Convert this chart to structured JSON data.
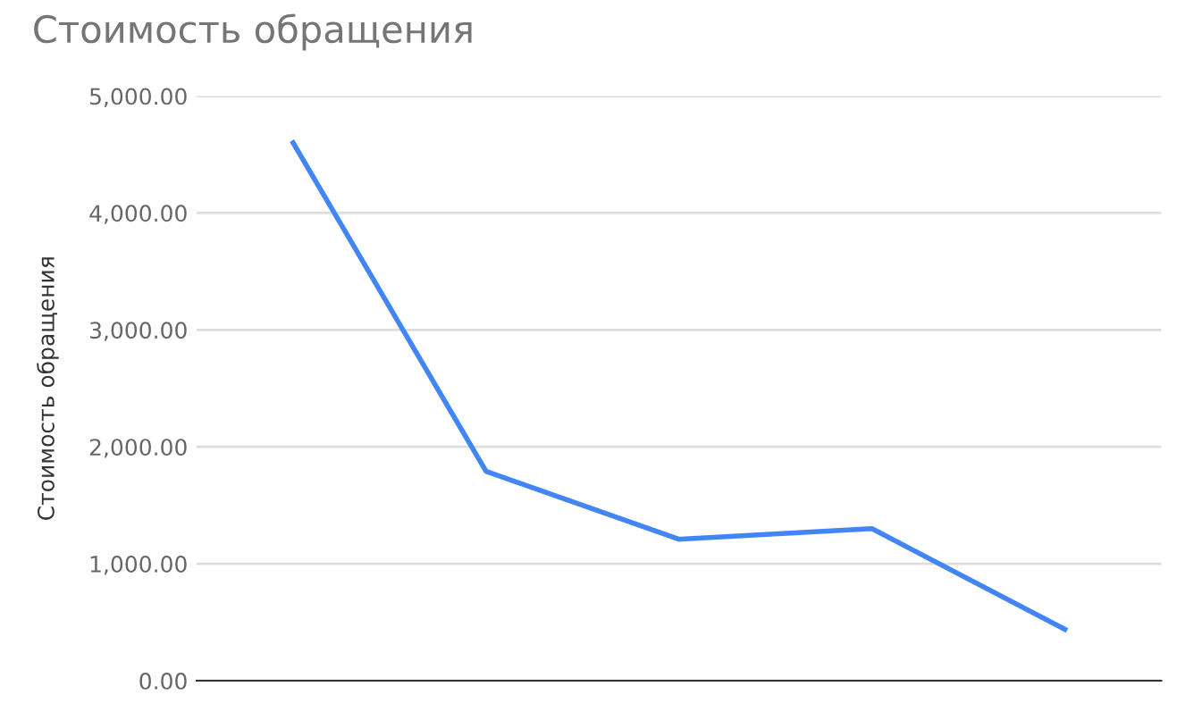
{
  "chart_data": {
    "type": "line",
    "title": "Стоимость обращения",
    "ylabel": "Стоимость обращения",
    "categories": [
      null,
      null,
      null,
      null,
      null
    ],
    "series": [
      {
        "color": "#4285f4",
        "values": [
          4600,
          1790,
          1210,
          1300,
          440
        ]
      }
    ],
    "ylim": [
      0,
      5000
    ],
    "yticks": [
      {
        "value": 0,
        "label": "0.00"
      },
      {
        "value": 1000,
        "label": "1,000.00"
      },
      {
        "value": 2000,
        "label": "2,000.00"
      },
      {
        "value": 3000,
        "label": "3,000.00"
      },
      {
        "value": 4000,
        "label": "4,000.00"
      },
      {
        "value": 5000,
        "label": "5,000.00"
      }
    ],
    "grid": "y",
    "marker": "none",
    "line_style": "solid"
  }
}
